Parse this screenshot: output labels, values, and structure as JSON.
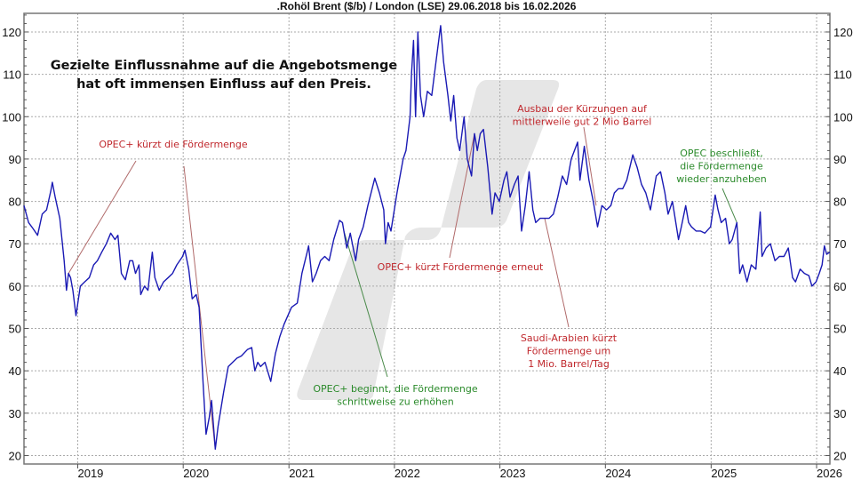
{
  "chart_data": {
    "type": "line",
    "title": ".Rohöl Brent ($/b) / London (LSE) 29.06.2018 bis 16.02.2026",
    "xlabel": "",
    "ylabel": "",
    "xlim": [
      "2018-06-29",
      "2026-02-16"
    ],
    "ylim": [
      18,
      124.4
    ],
    "y_ticks": [
      20,
      30,
      40,
      50,
      60,
      70,
      80,
      90,
      100,
      110,
      120
    ],
    "x_ticks": [
      "2019",
      "2020",
      "2021",
      "2022",
      "2023",
      "2024",
      "2025",
      "2026"
    ],
    "grid": true,
    "y_axis_sides": "both",
    "line_color": "#1a1ab4",
    "headline": [
      "Gezielte Einflussnahme auf die Angebotsmenge",
      "hat oft immensen Einfluss auf den Preis."
    ],
    "annotations": [
      {
        "lines": [
          "OPEC+ kürzt die Fördermenge"
        ],
        "color": "#c0282d",
        "date": [
          "2018-11-30",
          "2020-04-21"
        ]
      },
      {
        "lines": [
          "OPEC+ beginnt, die Fördermenge",
          "schrittweise zu erhöhen"
        ],
        "color": "#2a8a2a",
        "date": [
          "2021-07-10"
        ]
      },
      {
        "lines": [
          "OPEC+ kürzt Fördermenge erneut"
        ],
        "color": "#c0282d",
        "date": [
          "2022-10-05"
        ]
      },
      {
        "lines": [
          "Saudi-Arabien kürzt",
          "Fördermenge um",
          "1 Mio. Barrel/Tag"
        ],
        "color": "#c0282d",
        "date": [
          "2023-06-05"
        ]
      },
      {
        "lines": [
          "Ausbau der Kürzungen auf",
          "mittlerweile gut 2 Mio Barrel"
        ],
        "color": "#c0282d",
        "date": [
          "2023-11-30"
        ]
      },
      {
        "lines": [
          "OPEC beschließt,",
          "die Fördermenge",
          "wieder anzuheben"
        ],
        "color": "#2a8a2a",
        "date": [
          "2025-03-31"
        ]
      }
    ],
    "series": [
      {
        "points": [
          [
            "2018-06-29",
            79
          ],
          [
            "2018-07-15",
            75
          ],
          [
            "2018-07-31",
            73.5
          ],
          [
            "2018-08-15",
            72
          ],
          [
            "2018-08-31",
            77
          ],
          [
            "2018-09-15",
            78
          ],
          [
            "2018-09-30",
            82.5
          ],
          [
            "2018-10-05",
            84.5
          ],
          [
            "2018-10-15",
            81
          ],
          [
            "2018-10-31",
            76
          ],
          [
            "2018-11-15",
            66
          ],
          [
            "2018-11-23",
            59
          ],
          [
            "2018-11-30",
            63
          ],
          [
            "2018-12-07",
            62
          ],
          [
            "2018-12-15",
            59
          ],
          [
            "2018-12-26",
            53
          ],
          [
            "2019-01-10",
            60
          ],
          [
            "2019-01-25",
            61
          ],
          [
            "2019-02-10",
            62
          ],
          [
            "2019-02-25",
            65
          ],
          [
            "2019-03-10",
            66
          ],
          [
            "2019-03-25",
            68
          ],
          [
            "2019-04-10",
            70
          ],
          [
            "2019-04-25",
            72.5
          ],
          [
            "2019-05-10",
            71
          ],
          [
            "2019-05-20",
            72
          ],
          [
            "2019-06-01",
            63
          ],
          [
            "2019-06-15",
            61.5
          ],
          [
            "2019-06-30",
            66
          ],
          [
            "2019-07-10",
            66
          ],
          [
            "2019-07-20",
            63
          ],
          [
            "2019-08-01",
            65
          ],
          [
            "2019-08-07",
            58
          ],
          [
            "2019-08-20",
            60
          ],
          [
            "2019-09-01",
            59
          ],
          [
            "2019-09-16",
            68
          ],
          [
            "2019-09-25",
            62
          ],
          [
            "2019-10-10",
            59
          ],
          [
            "2019-10-25",
            61
          ],
          [
            "2019-11-10",
            62
          ],
          [
            "2019-11-25",
            63
          ],
          [
            "2019-12-10",
            65
          ],
          [
            "2019-12-30",
            67
          ],
          [
            "2020-01-07",
            68.5
          ],
          [
            "2020-01-20",
            64
          ],
          [
            "2020-02-01",
            57
          ],
          [
            "2020-02-15",
            58
          ],
          [
            "2020-02-25",
            55
          ],
          [
            "2020-03-10",
            37
          ],
          [
            "2020-03-20",
            25
          ],
          [
            "2020-03-31",
            29
          ],
          [
            "2020-04-08",
            33
          ],
          [
            "2020-04-21",
            21.5
          ],
          [
            "2020-05-01",
            27
          ],
          [
            "2020-05-20",
            35
          ],
          [
            "2020-06-05",
            41
          ],
          [
            "2020-06-20",
            42
          ],
          [
            "2020-07-05",
            43
          ],
          [
            "2020-07-20",
            43.5
          ],
          [
            "2020-08-10",
            45
          ],
          [
            "2020-08-25",
            45.5
          ],
          [
            "2020-09-05",
            40
          ],
          [
            "2020-09-15",
            42
          ],
          [
            "2020-09-25",
            41
          ],
          [
            "2020-10-10",
            42
          ],
          [
            "2020-10-30",
            37.5
          ],
          [
            "2020-11-15",
            44
          ],
          [
            "2020-11-30",
            48
          ],
          [
            "2020-12-15",
            51
          ],
          [
            "2021-01-10",
            55
          ],
          [
            "2021-01-30",
            56
          ],
          [
            "2021-02-15",
            63
          ],
          [
            "2021-03-05",
            68
          ],
          [
            "2021-03-10",
            69.5
          ],
          [
            "2021-03-23",
            61
          ],
          [
            "2021-04-05",
            63
          ],
          [
            "2021-04-20",
            66
          ],
          [
            "2021-05-05",
            67
          ],
          [
            "2021-05-20",
            66
          ],
          [
            "2021-06-05",
            71
          ],
          [
            "2021-06-25",
            75.5
          ],
          [
            "2021-07-05",
            75
          ],
          [
            "2021-07-10",
            73
          ],
          [
            "2021-07-20",
            69
          ],
          [
            "2021-08-01",
            72.5
          ],
          [
            "2021-08-20",
            66
          ],
          [
            "2021-08-30",
            71
          ],
          [
            "2021-09-15",
            74
          ],
          [
            "2021-10-01",
            79
          ],
          [
            "2021-10-25",
            85.5
          ],
          [
            "2021-11-10",
            82
          ],
          [
            "2021-11-25",
            78
          ],
          [
            "2021-12-01",
            70
          ],
          [
            "2021-12-10",
            75
          ],
          [
            "2021-12-20",
            73
          ],
          [
            "2022-01-10",
            82
          ],
          [
            "2022-01-31",
            90
          ],
          [
            "2022-02-10",
            92
          ],
          [
            "2022-02-24",
            100
          ],
          [
            "2022-03-01",
            110
          ],
          [
            "2022-03-08",
            118
          ],
          [
            "2022-03-15",
            100
          ],
          [
            "2022-03-23",
            120
          ],
          [
            "2022-04-01",
            105
          ],
          [
            "2022-04-12",
            100
          ],
          [
            "2022-04-25",
            106
          ],
          [
            "2022-05-10",
            105
          ],
          [
            "2022-05-25",
            113
          ],
          [
            "2022-06-10",
            121.5
          ],
          [
            "2022-06-20",
            113
          ],
          [
            "2022-07-05",
            105
          ],
          [
            "2022-07-15",
            99
          ],
          [
            "2022-07-25",
            105
          ],
          [
            "2022-08-05",
            95
          ],
          [
            "2022-08-15",
            92
          ],
          [
            "2022-08-30",
            100
          ],
          [
            "2022-09-10",
            90
          ],
          [
            "2022-09-25",
            86
          ],
          [
            "2022-10-05",
            96
          ],
          [
            "2022-10-15",
            92
          ],
          [
            "2022-10-25",
            96
          ],
          [
            "2022-11-05",
            97
          ],
          [
            "2022-11-20",
            88
          ],
          [
            "2022-12-05",
            77
          ],
          [
            "2022-12-15",
            82
          ],
          [
            "2022-12-30",
            80
          ],
          [
            "2023-01-15",
            85
          ],
          [
            "2023-01-25",
            87
          ],
          [
            "2023-02-05",
            81
          ],
          [
            "2023-02-20",
            84
          ],
          [
            "2023-03-05",
            86
          ],
          [
            "2023-03-17",
            73
          ],
          [
            "2023-03-30",
            79
          ],
          [
            "2023-04-12",
            87
          ],
          [
            "2023-04-25",
            78
          ],
          [
            "2023-05-05",
            75
          ],
          [
            "2023-05-20",
            76
          ],
          [
            "2023-06-05",
            76
          ],
          [
            "2023-06-20",
            76
          ],
          [
            "2023-07-05",
            77
          ],
          [
            "2023-07-20",
            81
          ],
          [
            "2023-08-05",
            86
          ],
          [
            "2023-08-20",
            84
          ],
          [
            "2023-09-05",
            90
          ],
          [
            "2023-09-27",
            94
          ],
          [
            "2023-10-05",
            85
          ],
          [
            "2023-10-20",
            93
          ],
          [
            "2023-11-05",
            85
          ],
          [
            "2023-11-20",
            80
          ],
          [
            "2023-12-05",
            74
          ],
          [
            "2023-12-20",
            79
          ],
          [
            "2024-01-05",
            78
          ],
          [
            "2024-01-20",
            79
          ],
          [
            "2024-02-01",
            82
          ],
          [
            "2024-02-15",
            83
          ],
          [
            "2024-03-01",
            83
          ],
          [
            "2024-03-15",
            85
          ],
          [
            "2024-04-05",
            91
          ],
          [
            "2024-04-20",
            88
          ],
          [
            "2024-05-05",
            84
          ],
          [
            "2024-05-20",
            82
          ],
          [
            "2024-06-05",
            78
          ],
          [
            "2024-06-25",
            86
          ],
          [
            "2024-07-10",
            87
          ],
          [
            "2024-07-25",
            82
          ],
          [
            "2024-08-05",
            77
          ],
          [
            "2024-08-20",
            80
          ],
          [
            "2024-09-10",
            71
          ],
          [
            "2024-09-20",
            74
          ],
          [
            "2024-10-05",
            79
          ],
          [
            "2024-10-15",
            75
          ],
          [
            "2024-10-25",
            74
          ],
          [
            "2024-11-10",
            73
          ],
          [
            "2024-11-25",
            73
          ],
          [
            "2024-12-10",
            72.5
          ],
          [
            "2024-12-30",
            74
          ],
          [
            "2025-01-15",
            81.5
          ],
          [
            "2025-01-25",
            78
          ],
          [
            "2025-02-05",
            75
          ],
          [
            "2025-02-20",
            76
          ],
          [
            "2025-03-05",
            70
          ],
          [
            "2025-03-15",
            71
          ],
          [
            "2025-03-31",
            75
          ],
          [
            "2025-04-10",
            63
          ],
          [
            "2025-04-20",
            65
          ],
          [
            "2025-05-05",
            61
          ],
          [
            "2025-05-20",
            65
          ],
          [
            "2025-06-05",
            64
          ],
          [
            "2025-06-20",
            77.5
          ],
          [
            "2025-06-26",
            67
          ],
          [
            "2025-07-10",
            69
          ],
          [
            "2025-07-25",
            70
          ],
          [
            "2025-08-10",
            66
          ],
          [
            "2025-08-25",
            67
          ],
          [
            "2025-09-10",
            67
          ],
          [
            "2025-09-25",
            69
          ],
          [
            "2025-10-10",
            62
          ],
          [
            "2025-10-20",
            61
          ],
          [
            "2025-11-05",
            64
          ],
          [
            "2025-11-20",
            63
          ],
          [
            "2025-12-05",
            62.5
          ],
          [
            "2025-12-16",
            60
          ],
          [
            "2025-12-30",
            61
          ],
          [
            "2026-01-10",
            63
          ],
          [
            "2026-01-20",
            65
          ],
          [
            "2026-01-28",
            69.5
          ],
          [
            "2026-02-05",
            67.5
          ],
          [
            "2026-02-16",
            68
          ]
        ]
      }
    ]
  }
}
